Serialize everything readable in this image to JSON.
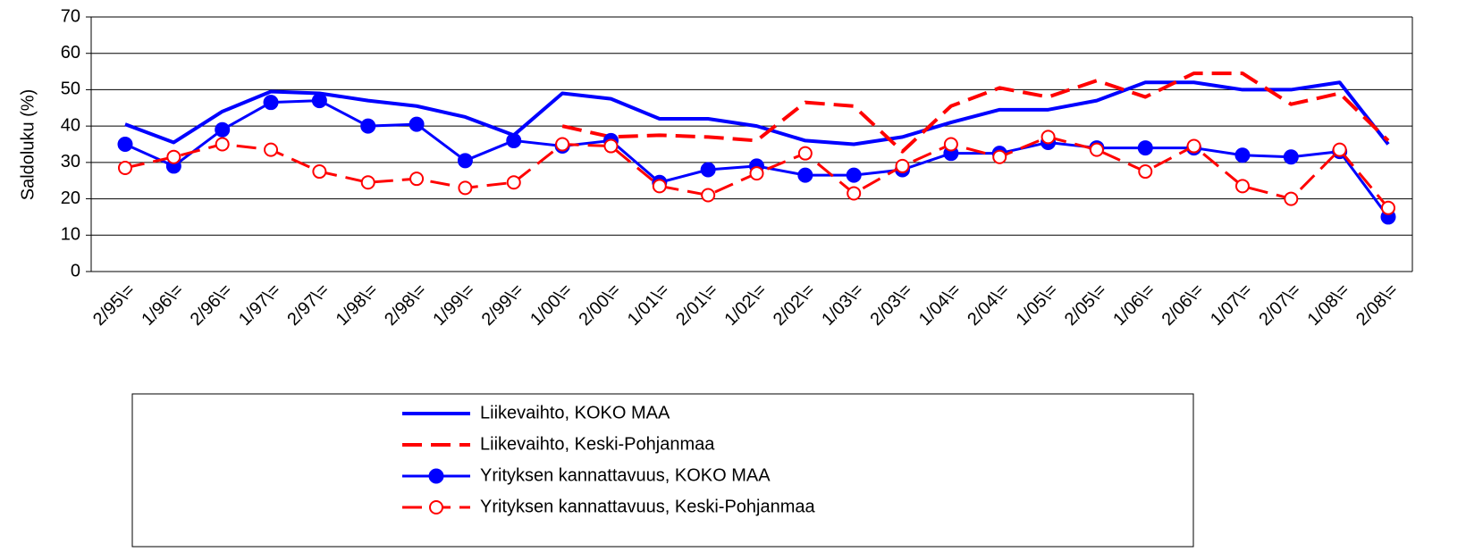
{
  "chart_data": {
    "type": "line",
    "y_label": "Saldoluku (%)",
    "categories": [
      "2/95\\=",
      "1/96\\=",
      "2/96\\=",
      "1/97\\=",
      "2/97\\=",
      "1/98\\=",
      "2/98\\=",
      "1/99\\=",
      "2/99\\=",
      "1/00\\=",
      "2/00\\=",
      "1/01\\=",
      "2/01\\=",
      "1/02\\=",
      "2/02\\=",
      "1/03\\=",
      "2/03\\=",
      "1/04\\=",
      "2/04\\=",
      "1/05\\=",
      "2/05\\=",
      "1/06\\=",
      "2/06\\=",
      "1/07\\=",
      "2/07\\=",
      "1/08\\=",
      "2/08\\="
    ],
    "series": [
      {
        "name": "Liikevaihto, KOKO MAA",
        "color": "#0000ff",
        "style": "solid",
        "weight": "bold",
        "marker": "none",
        "values": [
          40.5,
          35.5,
          44,
          49.5,
          49,
          47,
          45.5,
          42.5,
          37.5,
          49,
          47.5,
          42,
          42,
          40,
          36,
          35,
          37,
          41,
          44.5,
          44.5,
          47,
          52,
          52,
          50,
          50,
          52,
          35
        ]
      },
      {
        "name": "Liikevaihto, Keski-Pohjanmaa",
        "color": "#ff0000",
        "style": "dashed",
        "weight": "bold",
        "marker": "none",
        "values": [
          null,
          null,
          null,
          null,
          null,
          null,
          null,
          null,
          null,
          40,
          37,
          37.5,
          37,
          36,
          46.5,
          45.5,
          33,
          45.5,
          50.5,
          48,
          52.5,
          48,
          54.5,
          54.5,
          46,
          49,
          36
        ]
      },
      {
        "name": "Yrityksen kannattavuus, KOKO MAA",
        "color": "#0000ff",
        "style": "solid",
        "weight": "normal",
        "marker": "filled-circle",
        "values": [
          35,
          29,
          39,
          46.5,
          47,
          40,
          40.5,
          30.5,
          36,
          34.5,
          36,
          24.5,
          28,
          29,
          26.5,
          26.5,
          28,
          32.5,
          32.5,
          35.5,
          34,
          34,
          34,
          32,
          31.5,
          33,
          15
        ]
      },
      {
        "name": "Yrityksen kannattavuus, Keski-Pohjanmaa",
        "color": "#ff0000",
        "style": "dashed",
        "weight": "normal",
        "marker": "open-circle",
        "values": [
          28.5,
          31.5,
          35,
          33.5,
          27.5,
          24.5,
          25.5,
          23,
          24.5,
          35,
          34.5,
          23.5,
          21,
          27,
          32.5,
          21.5,
          29,
          35,
          31.5,
          37,
          33.5,
          27.5,
          34.5,
          23.5,
          20,
          33.5,
          17.5
        ]
      }
    ],
    "ylim": [
      0,
      70
    ],
    "yticks": [
      0,
      10,
      20,
      30,
      40,
      50,
      60,
      70
    ],
    "grid": true,
    "legend": "bottom"
  }
}
